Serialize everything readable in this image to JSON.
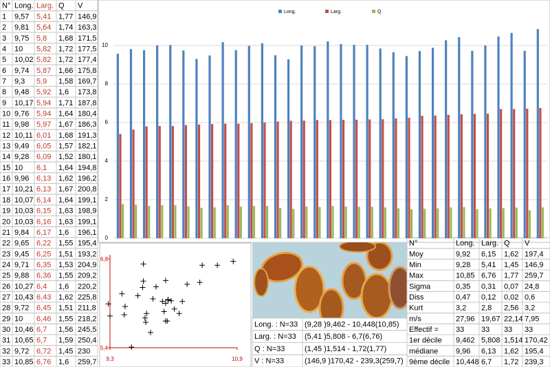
{
  "table": {
    "header": [
      "N°",
      "Long.",
      "Larg.",
      "Q",
      "V"
    ],
    "rows": [
      [
        "1",
        "9,57",
        "5,41",
        "1,77",
        "146,9"
      ],
      [
        "2",
        "9,81",
        "5,64",
        "1,74",
        "163,3"
      ],
      [
        "3",
        "9,75",
        "5,8",
        "1,68",
        "171,5"
      ],
      [
        "4",
        "10",
        "5,82",
        "1,72",
        "177,5"
      ],
      [
        "5",
        "10,02",
        "5,82",
        "1,72",
        "177,4"
      ],
      [
        "6",
        "9,74",
        "5,87",
        "1,66",
        "175,8"
      ],
      [
        "7",
        "9,3",
        "5,9",
        "1,58",
        "169,7"
      ],
      [
        "8",
        "9,48",
        "5,92",
        "1,6",
        "173,8"
      ],
      [
        "9",
        "10,17",
        "5,94",
        "1,71",
        "187,8"
      ],
      [
        "10",
        "9,76",
        "5,94",
        "1,64",
        "180,4"
      ],
      [
        "11",
        "9,98",
        "5,97",
        "1,67",
        "186,3"
      ],
      [
        "12",
        "10,11",
        "6,01",
        "1,68",
        "191,3"
      ],
      [
        "13",
        "9,49",
        "6,05",
        "1,57",
        "182,1"
      ],
      [
        "14",
        "9,28",
        "6,09",
        "1,52",
        "180,1"
      ],
      [
        "15",
        "10",
        "6,1",
        "1,64",
        "194,8"
      ],
      [
        "16",
        "9,96",
        "6,13",
        "1,62",
        "196,2"
      ],
      [
        "17",
        "10,21",
        "6,13",
        "1,67",
        "200,8"
      ],
      [
        "18",
        "10,07",
        "6,14",
        "1,64",
        "199,1"
      ],
      [
        "19",
        "10,03",
        "6,15",
        "1,63",
        "198,9"
      ],
      [
        "20",
        "10,03",
        "6,16",
        "1,63",
        "199,1"
      ],
      [
        "21",
        "9,84",
        "6,17",
        "1,6",
        "196,1"
      ],
      [
        "22",
        "9,65",
        "6,22",
        "1,55",
        "195,4"
      ],
      [
        "23",
        "9,45",
        "6,25",
        "1,51",
        "193,2"
      ],
      [
        "24",
        "9,71",
        "6,35",
        "1,53",
        "204,9"
      ],
      [
        "25",
        "9,88",
        "6,36",
        "1,55",
        "209,2"
      ],
      [
        "26",
        "10,27",
        "6,4",
        "1,6",
        "220,2"
      ],
      [
        "27",
        "10,43",
        "6,43",
        "1,62",
        "225,8"
      ],
      [
        "28",
        "9,72",
        "6,45",
        "1,51",
        "211,8"
      ],
      [
        "29",
        "10",
        "6,46",
        "1,55",
        "218,2"
      ],
      [
        "30",
        "10,46",
        "6,7",
        "1,56",
        "245,5"
      ],
      [
        "31",
        "10,65",
        "6,7",
        "1,59",
        "250,4"
      ],
      [
        "32",
        "9,72",
        "6,72",
        "1,45",
        "230"
      ],
      [
        "33",
        "10,85",
        "6,76",
        "1,6",
        "259,7"
      ]
    ]
  },
  "chart_data": [
    {
      "type": "bar",
      "ylim": [
        0,
        12
      ],
      "yticks": [
        0,
        2,
        4,
        6,
        8,
        10
      ],
      "grid": true,
      "legend": "top",
      "series": [
        {
          "name": "Long.",
          "color": "#4f81bd",
          "values": [
            9.57,
            9.81,
            9.75,
            10,
            10.02,
            9.74,
            9.3,
            9.48,
            10.17,
            9.76,
            9.98,
            10.11,
            9.49,
            9.28,
            10,
            9.96,
            10.21,
            10.07,
            10.03,
            10.03,
            9.84,
            9.65,
            9.45,
            9.71,
            9.88,
            10.27,
            10.43,
            9.72,
            10,
            10.46,
            10.65,
            9.72,
            10.85
          ]
        },
        {
          "name": "Larg.",
          "color": "#c0504d",
          "values": [
            5.41,
            5.64,
            5.8,
            5.82,
            5.82,
            5.87,
            5.9,
            5.92,
            5.94,
            5.94,
            5.97,
            6.01,
            6.05,
            6.09,
            6.1,
            6.13,
            6.13,
            6.14,
            6.15,
            6.16,
            6.17,
            6.22,
            6.25,
            6.35,
            6.36,
            6.4,
            6.43,
            6.45,
            6.46,
            6.7,
            6.7,
            6.72,
            6.76
          ]
        },
        {
          "name": "Q",
          "color": "#9bbb59",
          "values": [
            1.77,
            1.74,
            1.68,
            1.72,
            1.72,
            1.66,
            1.58,
            1.6,
            1.71,
            1.64,
            1.67,
            1.68,
            1.57,
            1.52,
            1.64,
            1.62,
            1.67,
            1.64,
            1.63,
            1.63,
            1.6,
            1.55,
            1.51,
            1.53,
            1.55,
            1.6,
            1.62,
            1.51,
            1.55,
            1.56,
            1.59,
            1.45,
            1.6
          ]
        }
      ]
    },
    {
      "type": "scatter",
      "color": "#000000",
      "axis_color": "#cc0000",
      "xlim": [
        9.3,
        10.9
      ],
      "xticks": [
        {
          "value": 9.3,
          "label": "9,3"
        },
        {
          "value": 10.9,
          "label": "10,9"
        }
      ],
      "ylim": [
        5.4,
        6.8
      ],
      "yticks": [
        {
          "value": 5.4,
          "label": "5,4"
        },
        {
          "value": 6.8,
          "label": "6,8"
        }
      ],
      "x": [
        9.57,
        9.81,
        9.75,
        10,
        10.02,
        9.74,
        9.3,
        9.48,
        10.17,
        9.76,
        9.98,
        10.11,
        9.49,
        9.28,
        10,
        9.96,
        10.21,
        10.07,
        10.03,
        10.03,
        9.84,
        9.65,
        9.45,
        9.71,
        9.88,
        10.27,
        10.43,
        9.72,
        10,
        10.46,
        10.65,
        9.72,
        10.85
      ],
      "values": [
        5.41,
        5.64,
        5.8,
        5.82,
        5.82,
        5.87,
        5.9,
        5.92,
        5.94,
        5.94,
        5.97,
        6.01,
        6.05,
        6.09,
        6.1,
        6.13,
        6.13,
        6.14,
        6.15,
        6.16,
        6.17,
        6.22,
        6.25,
        6.35,
        6.36,
        6.4,
        6.43,
        6.45,
        6.46,
        6.7,
        6.7,
        6.72,
        6.76
      ]
    }
  ],
  "summary": {
    "rows": [
      [
        "Long. : N=33",
        "(9,28 )9,462 - 10,448(10,85)"
      ],
      [
        "Larg. : N=33",
        "(5,41 )5,808 - 6,7(6,76)"
      ],
      [
        "Q : N=33",
        "(1,45 )1,514 - 1,72(1,77)"
      ],
      [
        "V : N=33",
        "(146,9 )170,42 - 239,3(259,7)"
      ]
    ]
  },
  "stats": {
    "header": [
      "N°",
      "Long.",
      "Larg.",
      "Q",
      "V"
    ],
    "rows": [
      [
        "Moy",
        "9,92",
        "6,15",
        "1,62",
        "197,4"
      ],
      [
        "Min",
        "9,28",
        "5,41",
        "1,45",
        "146,9"
      ],
      [
        "Max",
        "10,85",
        "6,76",
        "1,77",
        "259,7"
      ],
      [
        "Sigma",
        "0,35",
        "0,31",
        "0,07",
        "24,8"
      ],
      [
        "Diss",
        "0,47",
        "0,12",
        "0,02",
        "0,6"
      ],
      [
        "Kurt",
        "3,2",
        "2,8",
        "2,56",
        "3,2"
      ],
      [
        "m/s",
        "27,96",
        "19,67",
        "22,14",
        "7,95"
      ],
      [
        "Effectif =",
        "33",
        "33",
        "33",
        "33"
      ],
      [
        "1er décile",
        "9,462",
        "5,808",
        "1,514",
        "170,42"
      ],
      [
        "médiane",
        "9,96",
        "6,13",
        "1,62",
        "195,4"
      ],
      [
        "9ème décile",
        "10,448",
        "6,7",
        "1,72",
        "239,3"
      ]
    ]
  }
}
